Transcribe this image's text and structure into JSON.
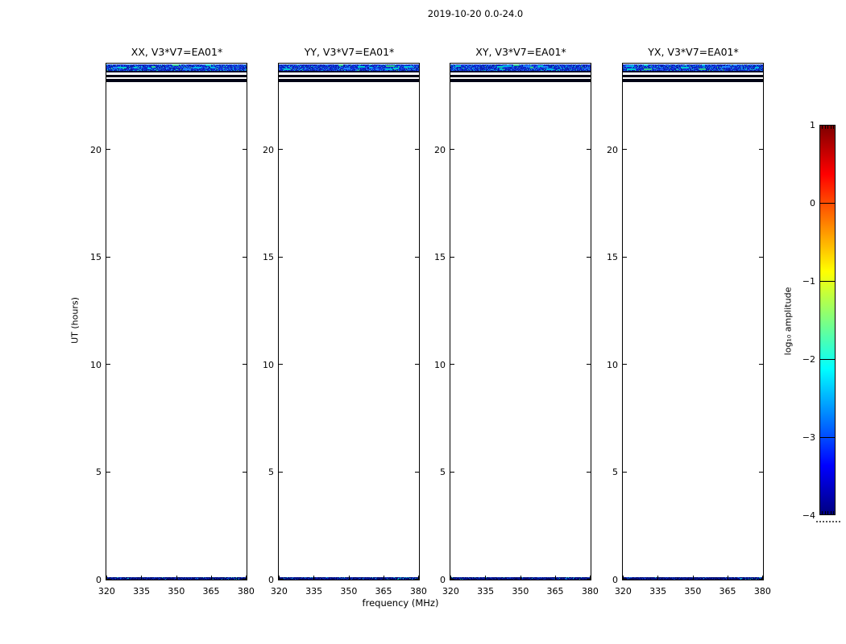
{
  "chart_data": {
    "type": "heatmap",
    "title": "2019-10-20 0.0-24.0",
    "subplot_titles": [
      "XX, V3*V7=EA01*",
      "YY, V3*V7=EA01*",
      "XY, V3*V7=EA01*",
      "YX, V3*V7=EA01*"
    ],
    "xlabel": "frequency (MHz)",
    "ylabel": "UT (hours)",
    "x_tick_labels": [
      "320",
      "335",
      "350",
      "365",
      "380"
    ],
    "y_tick_labels": [
      "0",
      "5",
      "10",
      "15",
      "20"
    ],
    "xlim_mhz": [
      320,
      381
    ],
    "ylim_hours": [
      0,
      24
    ],
    "grid": false,
    "legend": "none",
    "colorbar": {
      "label": "log₁₀ amplitude",
      "tick_labels": [
        "1",
        "0",
        "−1",
        "−2",
        "−3",
        "−4"
      ],
      "range_log10_amplitude": [
        -4,
        1
      ],
      "colormap": "jet",
      "gradient_stops_top_to_bottom": [
        "#7f0000",
        "#ff0000",
        "#ffff00",
        "#00ffff",
        "#0000ff",
        "#000080"
      ]
    },
    "features": [
      {
        "panels": "all",
        "ut_hours": [
          23.55,
          24.0
        ],
        "freq_mhz": [
          320,
          381
        ],
        "appearance": "speckled blue/cyan noise band across all frequencies",
        "log10_amplitude": [
          -3.5,
          -2.0
        ]
      },
      {
        "panels": "all",
        "ut_hours": [
          23.3,
          23.42
        ],
        "freq_mhz": [
          320,
          381
        ],
        "appearance": "thin very dark navy row",
        "log10_amplitude": -4
      },
      {
        "panels": "all",
        "ut_hours": [
          23.08,
          23.23
        ],
        "freq_mhz": [
          320,
          381
        ],
        "appearance": "thicker very dark navy row",
        "log10_amplitude": -4
      },
      {
        "panels": "all",
        "ut_hours": [
          0.0,
          0.12
        ],
        "freq_mhz": [
          320,
          381
        ],
        "appearance": "thin navy row with cyan/green specks, strongest near 370-380 MHz",
        "log10_amplitude": [
          -4,
          -2.5
        ]
      }
    ]
  }
}
